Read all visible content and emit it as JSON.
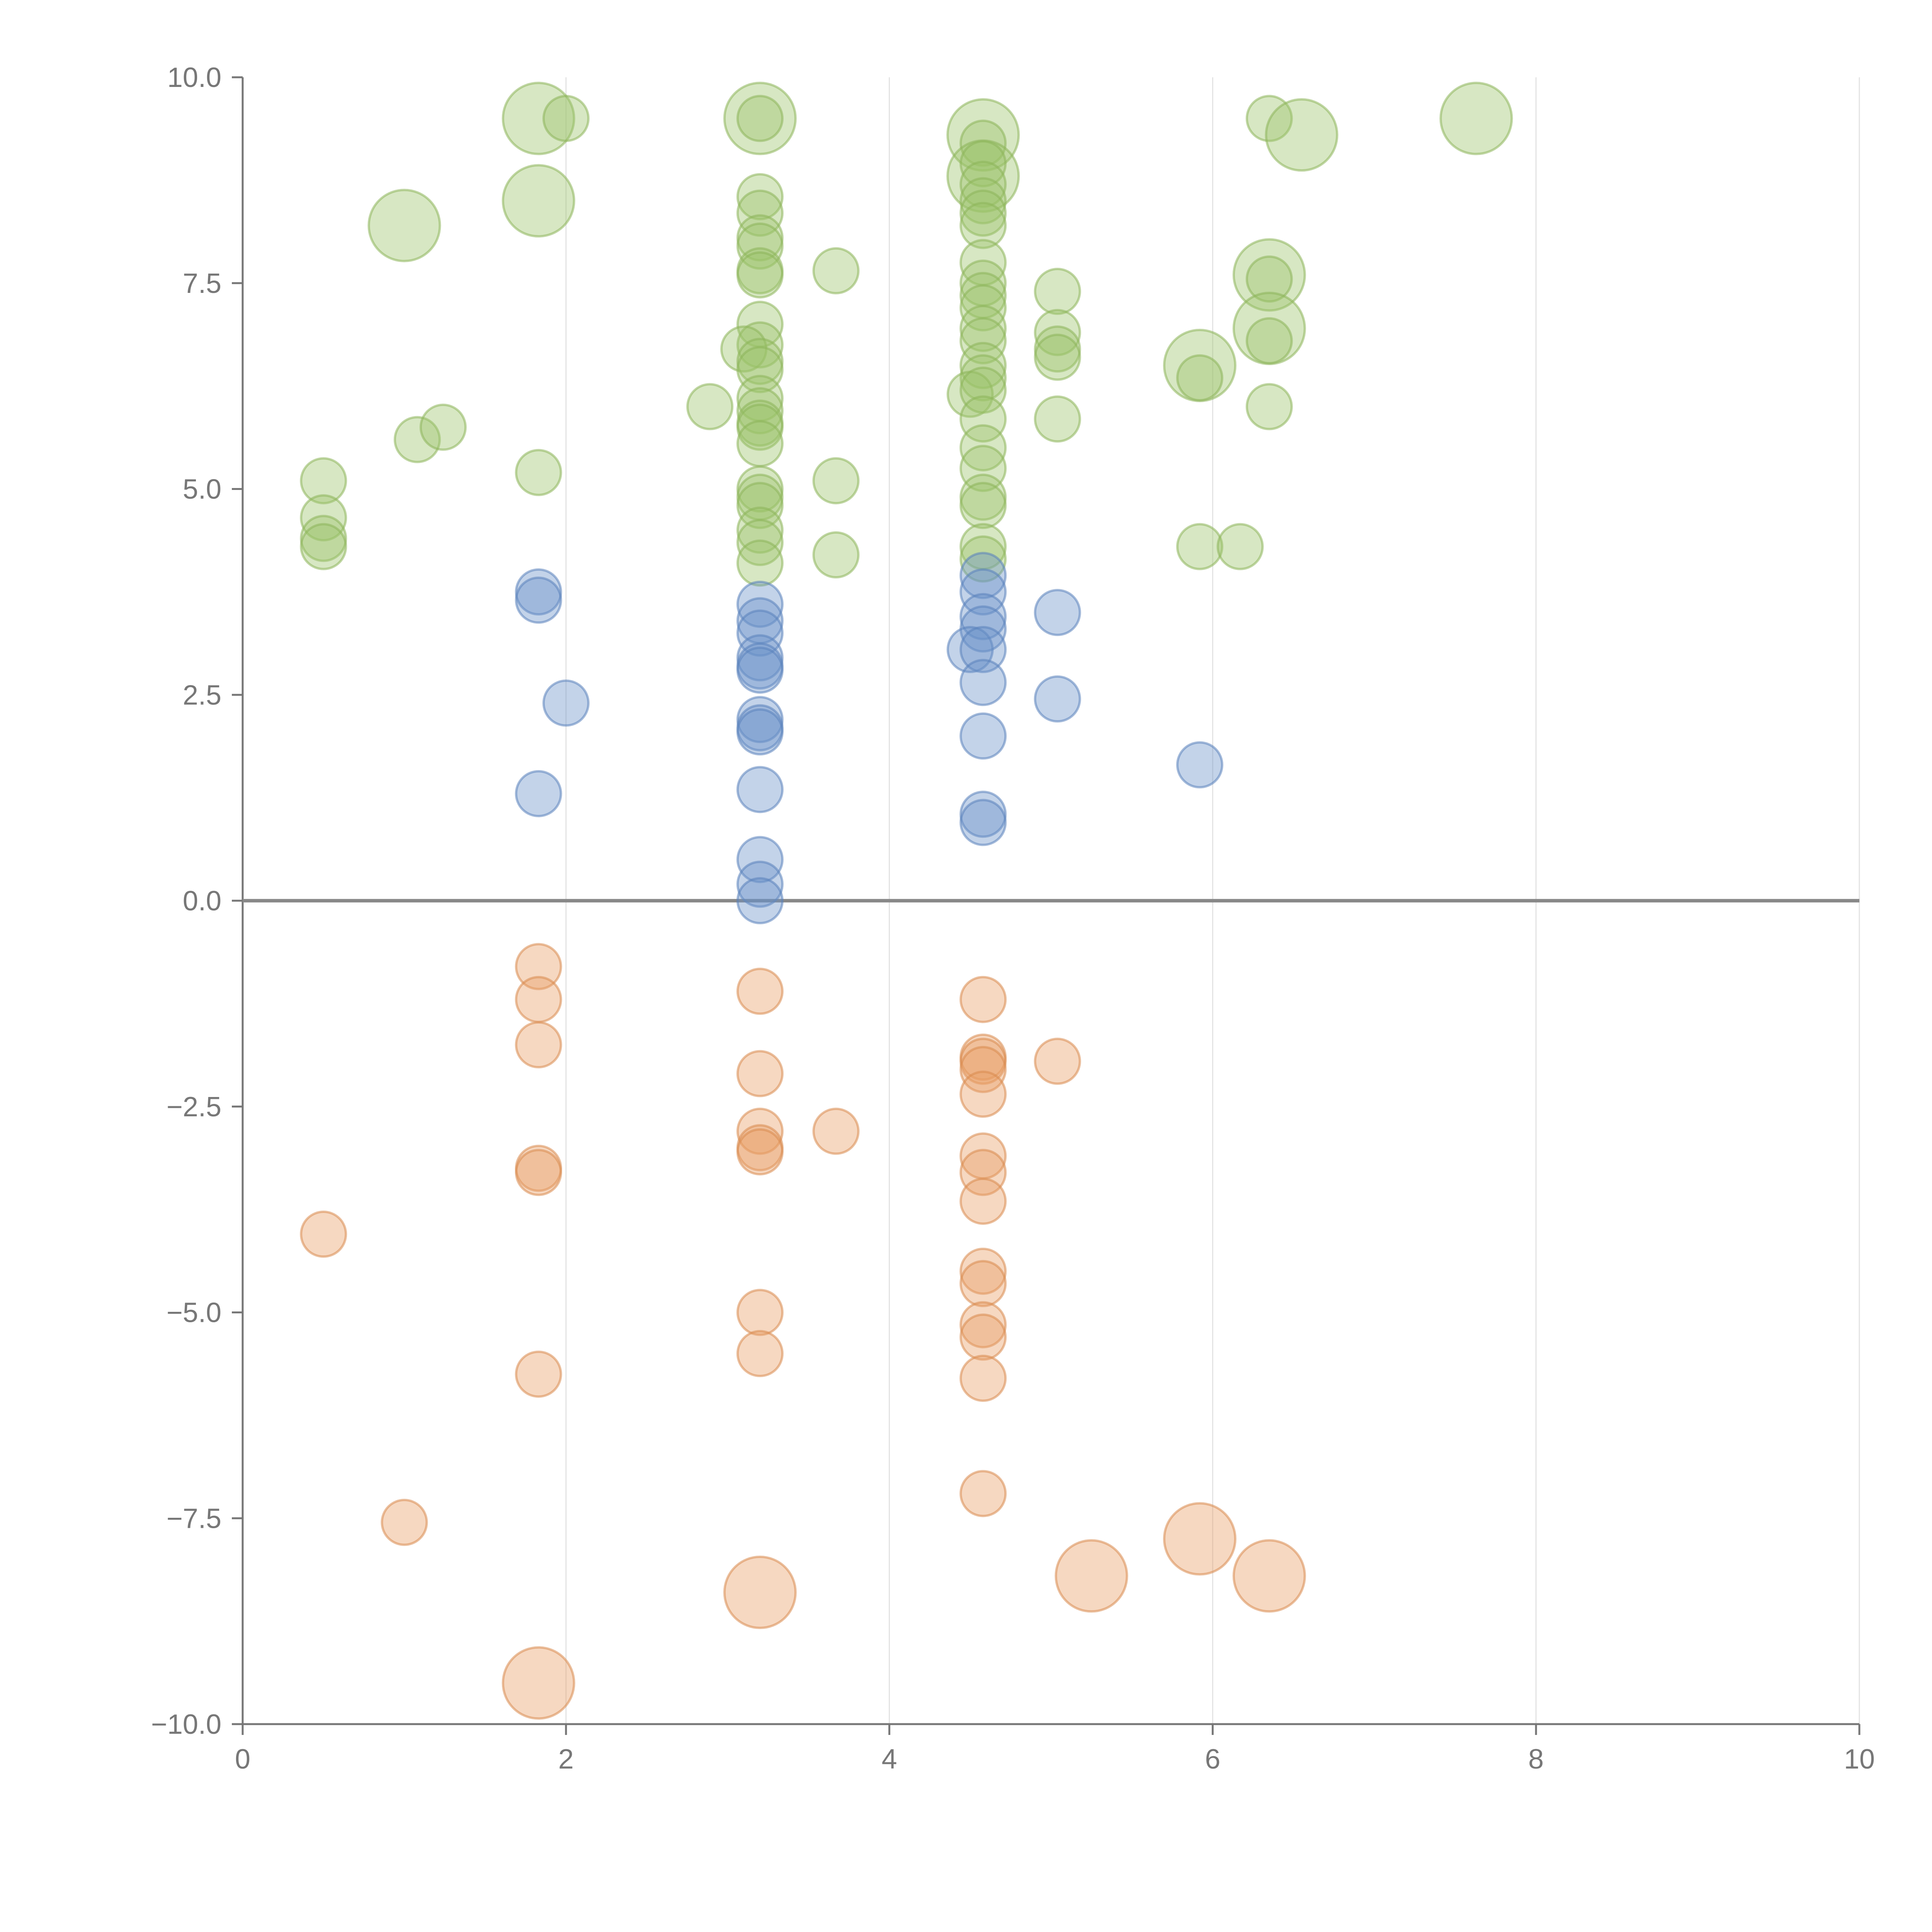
{
  "chart_data": {
    "type": "scatter",
    "title": "",
    "xlabel": "",
    "ylabel": "",
    "xlim": [
      0,
      10
    ],
    "ylim": [
      -10,
      10
    ],
    "grid": "vertical",
    "x_ticks": [
      0,
      2,
      4,
      6,
      8,
      10
    ],
    "x_tick_labels": [
      "0",
      "2",
      "4",
      "6",
      "8",
      "10"
    ],
    "y_ticks": [
      10,
      7.5,
      5,
      2.5,
      0,
      -2.5,
      -5,
      -7.5,
      -10
    ],
    "y_tick_labels": [
      "10.0",
      "7.5",
      "5.0",
      "2.5",
      "0.0",
      "−2.5",
      "−5.0",
      "−7.5",
      "−10.0"
    ],
    "series": [
      {
        "name": "green",
        "color": "#9cc26a",
        "stroke": "#8db55a",
        "points": [
          {
            "x": 1.83,
            "y": 9.5,
            "r": 2
          },
          {
            "x": 2.0,
            "y": 9.5,
            "r": 1
          },
          {
            "x": 3.2,
            "y": 9.5,
            "r": 2
          },
          {
            "x": 3.2,
            "y": 9.5,
            "r": 1
          },
          {
            "x": 4.58,
            "y": 9.3,
            "r": 2
          },
          {
            "x": 4.58,
            "y": 9.2,
            "r": 1
          },
          {
            "x": 4.58,
            "y": 8.8,
            "r": 2
          },
          {
            "x": 4.58,
            "y": 8.95,
            "r": 1
          },
          {
            "x": 4.58,
            "y": 8.7,
            "r": 1
          },
          {
            "x": 4.58,
            "y": 8.5,
            "r": 1
          },
          {
            "x": 4.58,
            "y": 8.35,
            "r": 1
          },
          {
            "x": 4.58,
            "y": 8.2,
            "r": 1
          },
          {
            "x": 4.58,
            "y": 7.75,
            "r": 1
          },
          {
            "x": 4.58,
            "y": 7.5,
            "r": 1
          },
          {
            "x": 4.58,
            "y": 7.35,
            "r": 1
          },
          {
            "x": 4.58,
            "y": 7.2,
            "r": 1
          },
          {
            "x": 4.58,
            "y": 6.95,
            "r": 1
          },
          {
            "x": 4.58,
            "y": 6.8,
            "r": 1
          },
          {
            "x": 4.58,
            "y": 6.5,
            "r": 1
          },
          {
            "x": 4.58,
            "y": 6.35,
            "r": 1
          },
          {
            "x": 4.5,
            "y": 6.15,
            "r": 1
          },
          {
            "x": 4.58,
            "y": 6.2,
            "r": 1
          },
          {
            "x": 4.58,
            "y": 5.85,
            "r": 1
          },
          {
            "x": 4.58,
            "y": 5.5,
            "r": 1
          },
          {
            "x": 4.58,
            "y": 5.25,
            "r": 1
          },
          {
            "x": 4.58,
            "y": 4.9,
            "r": 1
          },
          {
            "x": 4.58,
            "y": 4.8,
            "r": 1
          },
          {
            "x": 4.58,
            "y": 4.3,
            "r": 1
          },
          {
            "x": 4.58,
            "y": 4.15,
            "r": 1
          },
          {
            "x": 6.35,
            "y": 9.5,
            "r": 1
          },
          {
            "x": 6.55,
            "y": 9.3,
            "r": 2
          },
          {
            "x": 7.63,
            "y": 9.5,
            "r": 2
          },
          {
            "x": 1.0,
            "y": 8.2,
            "r": 2
          },
          {
            "x": 1.83,
            "y": 8.5,
            "r": 2
          },
          {
            "x": 3.2,
            "y": 8.55,
            "r": 1
          },
          {
            "x": 3.2,
            "y": 8.35,
            "r": 1
          },
          {
            "x": 3.2,
            "y": 8.05,
            "r": 1
          },
          {
            "x": 3.2,
            "y": 7.95,
            "r": 1
          },
          {
            "x": 3.2,
            "y": 7.65,
            "r": 1
          },
          {
            "x": 3.2,
            "y": 7.6,
            "r": 1
          },
          {
            "x": 3.2,
            "y": 7.0,
            "r": 1
          },
          {
            "x": 3.2,
            "y": 6.75,
            "r": 1
          },
          {
            "x": 3.1,
            "y": 6.7,
            "r": 1
          },
          {
            "x": 3.2,
            "y": 6.55,
            "r": 1
          },
          {
            "x": 3.2,
            "y": 6.45,
            "r": 1
          },
          {
            "x": 3.2,
            "y": 6.1,
            "r": 1
          },
          {
            "x": 3.2,
            "y": 5.95,
            "r": 1
          },
          {
            "x": 3.2,
            "y": 5.8,
            "r": 1
          },
          {
            "x": 3.2,
            "y": 5.75,
            "r": 1
          },
          {
            "x": 3.2,
            "y": 5.55,
            "r": 1
          },
          {
            "x": 3.2,
            "y": 5.0,
            "r": 1
          },
          {
            "x": 3.2,
            "y": 4.9,
            "r": 1
          },
          {
            "x": 3.2,
            "y": 4.8,
            "r": 1
          },
          {
            "x": 3.2,
            "y": 4.5,
            "r": 1
          },
          {
            "x": 3.2,
            "y": 4.35,
            "r": 1
          },
          {
            "x": 3.2,
            "y": 4.1,
            "r": 1
          },
          {
            "x": 3.67,
            "y": 7.65,
            "r": 1
          },
          {
            "x": 2.89,
            "y": 6.0,
            "r": 1
          },
          {
            "x": 3.67,
            "y": 5.1,
            "r": 1
          },
          {
            "x": 3.67,
            "y": 4.2,
            "r": 1
          },
          {
            "x": 5.04,
            "y": 7.4,
            "r": 1
          },
          {
            "x": 5.04,
            "y": 6.9,
            "r": 1
          },
          {
            "x": 5.04,
            "y": 6.7,
            "r": 1
          },
          {
            "x": 5.04,
            "y": 6.6,
            "r": 1
          },
          {
            "x": 5.04,
            "y": 5.85,
            "r": 1
          },
          {
            "x": 6.35,
            "y": 7.6,
            "r": 2
          },
          {
            "x": 6.35,
            "y": 7.55,
            "r": 1
          },
          {
            "x": 6.35,
            "y": 6.95,
            "r": 2
          },
          {
            "x": 6.35,
            "y": 6.8,
            "r": 1
          },
          {
            "x": 5.92,
            "y": 6.5,
            "r": 2
          },
          {
            "x": 5.92,
            "y": 6.35,
            "r": 1
          },
          {
            "x": 6.35,
            "y": 6.0,
            "r": 1
          },
          {
            "x": 5.92,
            "y": 4.3,
            "r": 1
          },
          {
            "x": 6.17,
            "y": 4.3,
            "r": 1
          },
          {
            "x": 1.08,
            "y": 5.6,
            "r": 1
          },
          {
            "x": 1.24,
            "y": 5.75,
            "r": 1
          },
          {
            "x": 1.83,
            "y": 5.2,
            "r": 1
          },
          {
            "x": 0.5,
            "y": 5.1,
            "r": 1
          },
          {
            "x": 0.5,
            "y": 4.65,
            "r": 1
          },
          {
            "x": 0.5,
            "y": 4.4,
            "r": 1
          },
          {
            "x": 0.5,
            "y": 4.3,
            "r": 1
          }
        ]
      },
      {
        "name": "blue",
        "color": "#6a92c8",
        "stroke": "#5a82bb",
        "points": [
          {
            "x": 1.83,
            "y": 3.75,
            "r": 1
          },
          {
            "x": 1.83,
            "y": 3.65,
            "r": 1
          },
          {
            "x": 2.0,
            "y": 2.4,
            "r": 1
          },
          {
            "x": 1.83,
            "y": 1.3,
            "r": 1
          },
          {
            "x": 3.2,
            "y": 3.6,
            "r": 1
          },
          {
            "x": 3.2,
            "y": 3.4,
            "r": 1
          },
          {
            "x": 3.2,
            "y": 3.25,
            "r": 1
          },
          {
            "x": 3.2,
            "y": 2.95,
            "r": 1
          },
          {
            "x": 3.2,
            "y": 2.85,
            "r": 1
          },
          {
            "x": 3.2,
            "y": 2.8,
            "r": 1
          },
          {
            "x": 3.2,
            "y": 2.2,
            "r": 1
          },
          {
            "x": 3.2,
            "y": 2.1,
            "r": 1
          },
          {
            "x": 3.2,
            "y": 2.05,
            "r": 1
          },
          {
            "x": 3.2,
            "y": 1.35,
            "r": 1
          },
          {
            "x": 3.2,
            "y": 0.5,
            "r": 1
          },
          {
            "x": 3.2,
            "y": 0.2,
            "r": 1
          },
          {
            "x": 3.2,
            "y": 0.0,
            "r": 1
          },
          {
            "x": 4.58,
            "y": 3.95,
            "r": 1
          },
          {
            "x": 4.58,
            "y": 3.75,
            "r": 1
          },
          {
            "x": 4.58,
            "y": 3.45,
            "r": 1
          },
          {
            "x": 4.58,
            "y": 3.3,
            "r": 1
          },
          {
            "x": 4.5,
            "y": 3.05,
            "r": 1
          },
          {
            "x": 4.58,
            "y": 3.05,
            "r": 1
          },
          {
            "x": 4.58,
            "y": 2.65,
            "r": 1
          },
          {
            "x": 4.58,
            "y": 2.0,
            "r": 1
          },
          {
            "x": 4.58,
            "y": 1.05,
            "r": 1
          },
          {
            "x": 4.58,
            "y": 0.95,
            "r": 1
          },
          {
            "x": 5.04,
            "y": 3.5,
            "r": 1
          },
          {
            "x": 5.04,
            "y": 2.45,
            "r": 1
          },
          {
            "x": 5.92,
            "y": 1.65,
            "r": 1
          }
        ]
      },
      {
        "name": "orange",
        "color": "#e89d65",
        "stroke": "#d98a4f",
        "points": [
          {
            "x": 1.83,
            "y": -0.8,
            "r": 1
          },
          {
            "x": 1.83,
            "y": -1.2,
            "r": 1
          },
          {
            "x": 1.83,
            "y": -1.75,
            "r": 1
          },
          {
            "x": 1.83,
            "y": -3.25,
            "r": 1
          },
          {
            "x": 1.83,
            "y": -3.3,
            "r": 1
          },
          {
            "x": 1.83,
            "y": -5.75,
            "r": 1
          },
          {
            "x": 1.83,
            "y": -9.5,
            "r": 2
          },
          {
            "x": 0.5,
            "y": -4.05,
            "r": 1
          },
          {
            "x": 1.0,
            "y": -7.55,
            "r": 1
          },
          {
            "x": 3.2,
            "y": -1.1,
            "r": 1
          },
          {
            "x": 3.2,
            "y": -2.1,
            "r": 1
          },
          {
            "x": 3.2,
            "y": -2.8,
            "r": 1
          },
          {
            "x": 3.2,
            "y": -3.0,
            "r": 1
          },
          {
            "x": 3.2,
            "y": -3.05,
            "r": 1
          },
          {
            "x": 3.2,
            "y": -5.0,
            "r": 1
          },
          {
            "x": 3.2,
            "y": -5.5,
            "r": 1
          },
          {
            "x": 3.2,
            "y": -8.4,
            "r": 2
          },
          {
            "x": 3.67,
            "y": -2.8,
            "r": 1
          },
          {
            "x": 4.58,
            "y": -1.2,
            "r": 1
          },
          {
            "x": 4.58,
            "y": -1.9,
            "r": 1
          },
          {
            "x": 4.58,
            "y": -1.95,
            "r": 1
          },
          {
            "x": 4.58,
            "y": -2.05,
            "r": 1
          },
          {
            "x": 4.58,
            "y": -2.35,
            "r": 1
          },
          {
            "x": 4.58,
            "y": -3.1,
            "r": 1
          },
          {
            "x": 4.58,
            "y": -3.3,
            "r": 1
          },
          {
            "x": 4.58,
            "y": -3.65,
            "r": 1
          },
          {
            "x": 4.58,
            "y": -4.5,
            "r": 1
          },
          {
            "x": 4.58,
            "y": -4.65,
            "r": 1
          },
          {
            "x": 4.58,
            "y": -5.15,
            "r": 1
          },
          {
            "x": 4.58,
            "y": -5.3,
            "r": 1
          },
          {
            "x": 4.58,
            "y": -5.8,
            "r": 1
          },
          {
            "x": 4.58,
            "y": -7.2,
            "r": 1
          },
          {
            "x": 5.04,
            "y": -1.95,
            "r": 1
          },
          {
            "x": 5.25,
            "y": -8.2,
            "r": 2
          },
          {
            "x": 5.92,
            "y": -7.75,
            "r": 2
          },
          {
            "x": 6.35,
            "y": -8.2,
            "r": 2
          }
        ]
      }
    ]
  }
}
